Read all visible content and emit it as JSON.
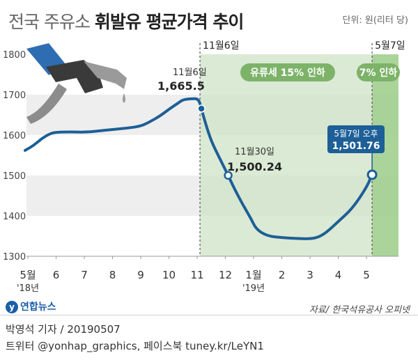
{
  "title": {
    "part1": "전국 주유소",
    "part2": "휘발유 평균가격 추이"
  },
  "unit_note": "단위: 원(리터 당)",
  "chart_data": {
    "type": "line",
    "title": "전국 주유소 휘발유 평균가격 추이",
    "ylabel": "",
    "ylim": [
      1300,
      1800
    ],
    "y_ticks": [
      1300,
      1400,
      1500,
      1600,
      1700,
      1800
    ],
    "x_ticks": [
      {
        "label": "5월",
        "sub": "'18년",
        "x": 0
      },
      {
        "label": "6",
        "x": 1
      },
      {
        "label": "7",
        "x": 2
      },
      {
        "label": "8",
        "x": 3
      },
      {
        "label": "9",
        "x": 4
      },
      {
        "label": "10",
        "x": 5
      },
      {
        "label": "11",
        "x": 6
      },
      {
        "label": "12",
        "x": 7
      },
      {
        "label": "1월",
        "sub": "'19년",
        "x": 8
      },
      {
        "label": "2",
        "x": 9
      },
      {
        "label": "3",
        "x": 10
      },
      {
        "label": "4",
        "x": 11
      },
      {
        "label": "5",
        "x": 12
      }
    ],
    "series": [
      {
        "name": "",
        "x": [
          -0.1,
          0.2,
          0.5,
          0.8,
          1.0,
          1.5,
          2.0,
          2.5,
          3.0,
          3.5,
          4.0,
          4.3,
          4.7,
          5.0,
          5.3,
          5.5,
          5.8,
          6.05,
          6.15,
          6.3,
          6.5,
          6.8,
          7.1,
          7.3,
          7.6,
          7.9,
          8.1,
          8.5,
          9.0,
          9.5,
          10.0,
          10.3,
          10.6,
          11.0,
          11.5,
          12.0,
          12.2
        ],
        "y": [
          1562,
          1574,
          1592,
          1604,
          1607,
          1608,
          1607,
          1610,
          1614,
          1617,
          1622,
          1632,
          1648,
          1664,
          1678,
          1688,
          1690,
          1690,
          1665.5,
          1628,
          1585,
          1542,
          1500.24,
          1470,
          1430,
          1394,
          1366,
          1350,
          1346,
          1344,
          1343,
          1347,
          1360,
          1386,
          1418,
          1470,
          1501.76
        ]
      }
    ],
    "periods": [
      {
        "label": "유류세 15% 인하",
        "x_start": 6.1,
        "x_end": 12.0
      },
      {
        "label": "7% 인하",
        "x_start": 12.2,
        "x_end": 12.9
      }
    ],
    "markers": [
      {
        "label": "11월6일",
        "x": 6.1
      },
      {
        "label": "5월7일",
        "x": 12.2
      }
    ],
    "annotations": [
      {
        "date": "11월6일",
        "value": "1,665.5",
        "x": 6.15,
        "y": 1665.5
      },
      {
        "date": "11월30일",
        "value": "1,500.24",
        "x": 7.1,
        "y": 1500.24
      },
      {
        "date": "5월7일 오후",
        "value": "1,501.76",
        "x": 12.2,
        "y": 1501.76
      }
    ],
    "grid": "horizontal bands",
    "colors": {
      "line": "#1d5f96",
      "band": "#eeeeee",
      "period1": "#cfe3c5",
      "period2": "#9ccc8a",
      "pill": "#7db369",
      "callout": "#1d5f96"
    }
  },
  "footer": {
    "logo": "연합뉴스",
    "source": "자료/ 한국석유공사 오피넷",
    "reporter": "박영석 기자 / 20190507",
    "social": "트위터 @yonhap_graphics, 페이스북 tuney.kr/LeYN1"
  }
}
